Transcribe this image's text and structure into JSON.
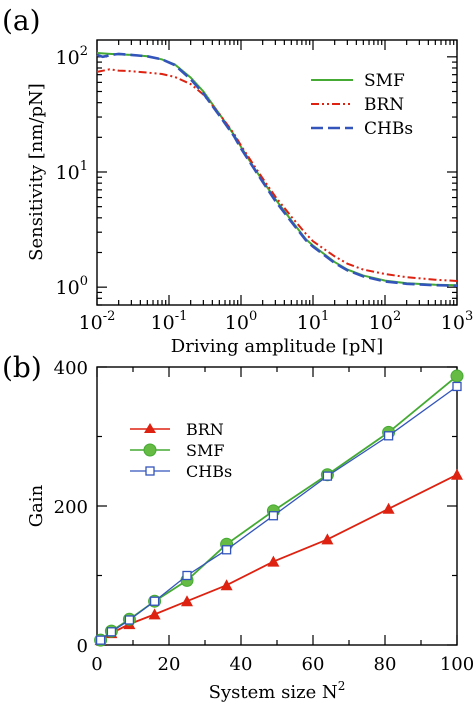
{
  "chart_data": [
    {
      "panel_label": "(a)",
      "type": "line",
      "xlabel": "Driving amplitude [pN]",
      "ylabel": "Sensitivity [nm/pN]",
      "xscale": "log",
      "yscale": "log",
      "xlim": [
        0.01,
        1000
      ],
      "ylim": [
        0.7,
        140
      ],
      "x_tick_labels": [
        {
          "base": "10",
          "exp": "-2"
        },
        {
          "base": "10",
          "exp": "-1"
        },
        {
          "base": "10",
          "exp": "0"
        },
        {
          "base": "10",
          "exp": "1"
        },
        {
          "base": "10",
          "exp": "2"
        },
        {
          "base": "10",
          "exp": "3"
        }
      ],
      "y_tick_labels": [
        {
          "base": "10",
          "exp": "0"
        },
        {
          "base": "10",
          "exp": "1"
        },
        {
          "base": "10",
          "exp": "2"
        }
      ],
      "grid": false,
      "legend_position": "top-right",
      "series": [
        {
          "name": "SMF",
          "color": "#44aa33",
          "dash": "solid",
          "x": [
            0.01,
            0.015,
            0.02,
            0.03,
            0.05,
            0.08,
            0.12,
            0.2,
            0.3,
            0.5,
            0.8,
            1,
            1.5,
            2,
            3,
            5,
            8,
            10,
            20,
            30,
            50,
            100,
            200,
            500,
            1000
          ],
          "y": [
            108,
            106,
            105,
            104,
            101,
            95,
            86,
            66,
            50,
            32,
            21,
            16.5,
            11,
            8.4,
            5.8,
            3.8,
            2.6,
            2.3,
            1.65,
            1.42,
            1.26,
            1.14,
            1.08,
            1.05,
            1.04
          ]
        },
        {
          "name": "BRN",
          "color": "#dd2211",
          "dash": "8,3,2,3,2,3",
          "x": [
            0.01,
            0.015,
            0.02,
            0.03,
            0.05,
            0.08,
            0.12,
            0.2,
            0.3,
            0.5,
            0.8,
            1,
            1.5,
            2,
            3,
            5,
            8,
            10,
            20,
            30,
            50,
            100,
            200,
            500,
            1000
          ],
          "y": [
            74,
            78,
            76,
            75,
            73,
            71,
            67,
            58,
            47,
            32,
            21.5,
            17,
            11.5,
            8.8,
            6.1,
            4.1,
            2.9,
            2.5,
            1.85,
            1.6,
            1.42,
            1.3,
            1.22,
            1.16,
            1.13
          ]
        },
        {
          "name": "CHBs",
          "color": "#3355bb",
          "dash": "12,5",
          "x": [
            0.01,
            0.012,
            0.014,
            0.016,
            0.02,
            0.03,
            0.05,
            0.08,
            0.12,
            0.2,
            0.3,
            0.5,
            0.8,
            1,
            1.5,
            2,
            3,
            5,
            8,
            10,
            20,
            30,
            50,
            100,
            200,
            500,
            1000
          ],
          "y": [
            104,
            100,
            102,
            104,
            106,
            104,
            101,
            95,
            85,
            64,
            48,
            31,
            20.5,
            16,
            10.8,
            8.2,
            5.6,
            3.7,
            2.55,
            2.25,
            1.62,
            1.4,
            1.24,
            1.12,
            1.07,
            1.04,
            1.03
          ]
        }
      ]
    },
    {
      "panel_label": "(b)",
      "type": "line",
      "xlabel": "System size N",
      "xlabel_sup": "2",
      "ylabel": "Gain",
      "xlim": [
        0,
        100
      ],
      "ylim": [
        0,
        400
      ],
      "x_ticks": [
        "0",
        "20",
        "40",
        "60",
        "80",
        "100"
      ],
      "y_ticks": [
        "0",
        "200",
        "400"
      ],
      "grid": false,
      "legend_position": "top-left",
      "series": [
        {
          "name": "BRN",
          "color": "#dd2211",
          "marker": "triangle",
          "x": [
            1,
            4,
            9,
            16,
            25,
            36,
            49,
            64,
            81,
            100
          ],
          "y": [
            7,
            17,
            30,
            44,
            63,
            86,
            120,
            152,
            196,
            245
          ]
        },
        {
          "name": "SMF",
          "color": "#44aa33",
          "marker": "circle",
          "x": [
            1,
            4,
            9,
            16,
            25,
            36,
            49,
            64,
            81,
            100
          ],
          "y": [
            7,
            20,
            37,
            63,
            93,
            145,
            193,
            245,
            306,
            387
          ]
        },
        {
          "name": "CHBs",
          "color": "#3355bb",
          "marker": "square",
          "x": [
            1,
            4,
            9,
            16,
            25,
            36,
            49,
            64,
            81,
            100
          ],
          "y": [
            7,
            19,
            36,
            63,
            100,
            137,
            186,
            243,
            301,
            372
          ]
        }
      ]
    }
  ]
}
